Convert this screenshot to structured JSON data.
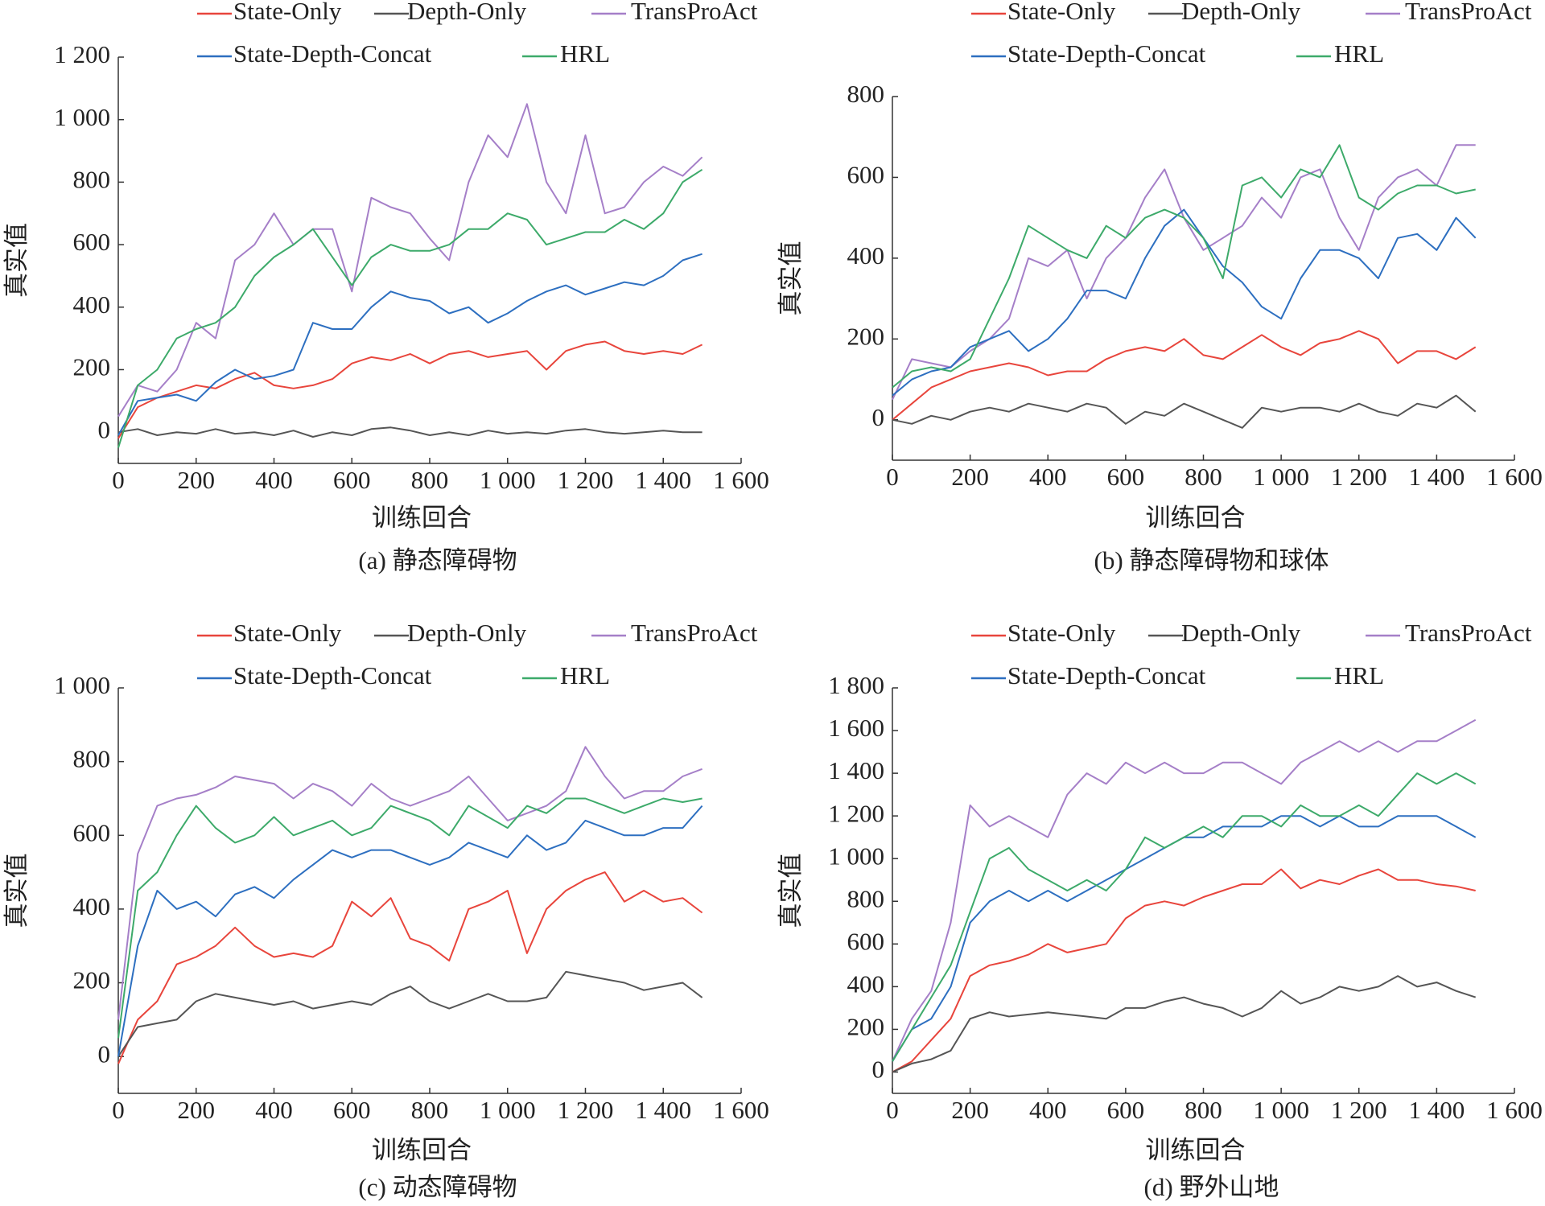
{
  "chart_data": [
    {
      "type": "line",
      "caption": "(a) 静态障碍物",
      "x_label": "训练回合",
      "y_label": "真实值",
      "x": [
        0,
        50,
        100,
        150,
        200,
        250,
        300,
        350,
        400,
        450,
        500,
        550,
        600,
        650,
        700,
        750,
        800,
        850,
        900,
        950,
        1000,
        1050,
        1100,
        1150,
        1200,
        1250,
        1300,
        1350,
        1400,
        1450,
        1500
      ],
      "xlim": [
        0,
        1600
      ],
      "xticks": [
        0,
        200,
        400,
        600,
        800,
        {
          "value": 1000,
          "label": "1 000"
        },
        {
          "value": 1200,
          "label": "1 200"
        },
        {
          "value": 1400,
          "label": "1 400"
        },
        {
          "value": 1600,
          "label": "1 600"
        }
      ],
      "ylim": [
        -100,
        1200
      ],
      "yticks": [
        0,
        200,
        400,
        600,
        800,
        {
          "value": 1000,
          "label": "1 000"
        },
        {
          "value": 1200,
          "label": "1 200"
        }
      ],
      "series": [
        {
          "name": "State-Only",
          "color": "#e8453c",
          "values": [
            -20,
            80,
            110,
            130,
            150,
            140,
            170,
            190,
            150,
            140,
            150,
            170,
            220,
            240,
            230,
            250,
            220,
            250,
            260,
            240,
            250,
            260,
            200,
            260,
            280,
            290,
            260,
            250,
            260,
            250,
            280
          ]
        },
        {
          "name": "Depth-Only",
          "color": "#555555",
          "values": [
            0,
            10,
            -10,
            0,
            -5,
            10,
            -5,
            0,
            -10,
            5,
            -15,
            0,
            -10,
            10,
            15,
            5,
            -10,
            0,
            -10,
            5,
            -5,
            0,
            -5,
            5,
            10,
            0,
            -5,
            0,
            5,
            0,
            0
          ]
        },
        {
          "name": "TransProAct",
          "color": "#a57fc8",
          "values": [
            50,
            150,
            130,
            200,
            350,
            300,
            550,
            600,
            700,
            600,
            650,
            650,
            450,
            750,
            720,
            700,
            620,
            550,
            800,
            950,
            880,
            1050,
            800,
            700,
            950,
            700,
            720,
            800,
            850,
            820,
            880
          ]
        },
        {
          "name": "State-Depth-Concat",
          "color": "#2d6fc0",
          "values": [
            -10,
            100,
            110,
            120,
            100,
            160,
            200,
            170,
            180,
            200,
            350,
            330,
            330,
            400,
            450,
            430,
            420,
            380,
            400,
            350,
            380,
            420,
            450,
            470,
            440,
            460,
            480,
            470,
            500,
            550,
            570
          ]
        },
        {
          "name": "HRL",
          "color": "#3daa6a",
          "values": [
            -50,
            150,
            200,
            300,
            330,
            350,
            400,
            500,
            560,
            600,
            650,
            560,
            470,
            560,
            600,
            580,
            580,
            600,
            650,
            650,
            700,
            680,
            600,
            620,
            640,
            640,
            680,
            650,
            700,
            800,
            840
          ]
        }
      ]
    },
    {
      "type": "line",
      "caption": "(b) 静态障碍物和球体",
      "x_label": "训练回合",
      "y_label": "真实值",
      "x": [
        0,
        50,
        100,
        150,
        200,
        250,
        300,
        350,
        400,
        450,
        500,
        550,
        600,
        650,
        700,
        750,
        800,
        850,
        900,
        950,
        1000,
        1050,
        1100,
        1150,
        1200,
        1250,
        1300,
        1350,
        1400,
        1450,
        1500
      ],
      "xlim": [
        0,
        1600
      ],
      "xticks": [
        0,
        200,
        400,
        600,
        800,
        {
          "value": 1000,
          "label": "1 000"
        },
        {
          "value": 1200,
          "label": "1 200"
        },
        {
          "value": 1400,
          "label": "1 400"
        },
        {
          "value": 1600,
          "label": "1 600"
        }
      ],
      "ylim": [
        -100,
        800
      ],
      "yticks": [
        0,
        200,
        400,
        600,
        800
      ],
      "series": [
        {
          "name": "State-Only",
          "color": "#e8453c",
          "values": [
            0,
            40,
            80,
            100,
            120,
            130,
            140,
            130,
            110,
            120,
            120,
            150,
            170,
            180,
            170,
            200,
            160,
            150,
            180,
            210,
            180,
            160,
            190,
            200,
            220,
            200,
            140,
            170,
            170,
            150,
            180
          ]
        },
        {
          "name": "Depth-Only",
          "color": "#555555",
          "values": [
            0,
            -10,
            10,
            0,
            20,
            30,
            20,
            40,
            30,
            20,
            40,
            30,
            -10,
            20,
            10,
            40,
            20,
            0,
            -20,
            30,
            20,
            30,
            30,
            20,
            40,
            20,
            10,
            40,
            30,
            60,
            20
          ]
        },
        {
          "name": "TransProAct",
          "color": "#a57fc8",
          "values": [
            50,
            150,
            140,
            130,
            170,
            200,
            250,
            400,
            380,
            420,
            300,
            400,
            450,
            550,
            620,
            500,
            420,
            450,
            480,
            550,
            500,
            600,
            620,
            500,
            420,
            550,
            600,
            620,
            580,
            680,
            680
          ]
        },
        {
          "name": "State-Depth-Concat",
          "color": "#2d6fc0",
          "values": [
            60,
            100,
            120,
            130,
            180,
            200,
            220,
            170,
            200,
            250,
            320,
            320,
            300,
            400,
            480,
            520,
            450,
            380,
            340,
            280,
            250,
            350,
            420,
            420,
            400,
            350,
            450,
            460,
            420,
            500,
            450
          ]
        },
        {
          "name": "HRL",
          "color": "#3daa6a",
          "values": [
            80,
            120,
            130,
            120,
            150,
            250,
            350,
            480,
            450,
            420,
            400,
            480,
            450,
            500,
            520,
            500,
            450,
            350,
            580,
            600,
            550,
            620,
            600,
            680,
            550,
            520,
            560,
            580,
            580,
            560,
            570
          ]
        }
      ]
    },
    {
      "type": "line",
      "caption": "(c) 动态障碍物",
      "x_label": "训练回合",
      "y_label": "真实值",
      "x": [
        0,
        50,
        100,
        150,
        200,
        250,
        300,
        350,
        400,
        450,
        500,
        550,
        600,
        650,
        700,
        750,
        800,
        850,
        900,
        950,
        1000,
        1050,
        1100,
        1150,
        1200,
        1250,
        1300,
        1350,
        1400,
        1450,
        1500
      ],
      "xlim": [
        0,
        1600
      ],
      "xticks": [
        0,
        200,
        400,
        600,
        800,
        {
          "value": 1000,
          "label": "1 000"
        },
        {
          "value": 1200,
          "label": "1 200"
        },
        {
          "value": 1400,
          "label": "1 400"
        },
        {
          "value": 1600,
          "label": "1 600"
        }
      ],
      "ylim": [
        -100,
        1000
      ],
      "yticks": [
        0,
        200,
        400,
        600,
        800,
        {
          "value": 1000,
          "label": "1 000"
        }
      ],
      "series": [
        {
          "name": "State-Only",
          "color": "#e8453c",
          "values": [
            -20,
            100,
            150,
            250,
            270,
            300,
            350,
            300,
            270,
            280,
            270,
            300,
            420,
            380,
            430,
            320,
            300,
            260,
            400,
            420,
            450,
            280,
            400,
            450,
            480,
            500,
            420,
            450,
            420,
            430,
            390
          ]
        },
        {
          "name": "Depth-Only",
          "color": "#555555",
          "values": [
            0,
            80,
            90,
            100,
            150,
            170,
            160,
            150,
            140,
            150,
            130,
            140,
            150,
            140,
            170,
            190,
            150,
            130,
            150,
            170,
            150,
            150,
            160,
            230,
            220,
            210,
            200,
            180,
            190,
            200,
            160
          ]
        },
        {
          "name": "TransProAct",
          "color": "#a57fc8",
          "values": [
            100,
            550,
            680,
            700,
            710,
            730,
            760,
            750,
            740,
            700,
            740,
            720,
            680,
            740,
            700,
            680,
            700,
            720,
            760,
            700,
            640,
            660,
            680,
            720,
            840,
            760,
            700,
            720,
            720,
            760,
            780
          ]
        },
        {
          "name": "State-Depth-Concat",
          "color": "#2d6fc0",
          "values": [
            0,
            300,
            450,
            400,
            420,
            380,
            440,
            460,
            430,
            480,
            520,
            560,
            540,
            560,
            560,
            540,
            520,
            540,
            580,
            560,
            540,
            600,
            560,
            580,
            640,
            620,
            600,
            600,
            620,
            620,
            680
          ]
        },
        {
          "name": "HRL",
          "color": "#3daa6a",
          "values": [
            50,
            450,
            500,
            600,
            680,
            620,
            580,
            600,
            650,
            600,
            620,
            640,
            600,
            620,
            680,
            660,
            640,
            600,
            680,
            650,
            620,
            680,
            660,
            700,
            700,
            680,
            660,
            680,
            700,
            690,
            700
          ]
        }
      ]
    },
    {
      "type": "line",
      "caption": "(d) 野外山地",
      "x_label": "训练回合",
      "y_label": "真实值",
      "x": [
        0,
        50,
        100,
        150,
        200,
        250,
        300,
        350,
        400,
        450,
        500,
        550,
        600,
        650,
        700,
        750,
        800,
        850,
        900,
        950,
        1000,
        1050,
        1100,
        1150,
        1200,
        1250,
        1300,
        1350,
        1400,
        1450,
        1500
      ],
      "xlim": [
        0,
        1600
      ],
      "xticks": [
        0,
        200,
        400,
        600,
        800,
        {
          "value": 1000,
          "label": "1 000"
        },
        {
          "value": 1200,
          "label": "1 200"
        },
        {
          "value": 1400,
          "label": "1 400"
        },
        {
          "value": 1600,
          "label": "1 600"
        }
      ],
      "ylim": [
        -100,
        1800
      ],
      "yticks": [
        0,
        200,
        400,
        600,
        800,
        {
          "value": 1000,
          "label": "1 000"
        },
        {
          "value": 1200,
          "label": "1 200"
        },
        {
          "value": 1400,
          "label": "1 400"
        },
        {
          "value": 1600,
          "label": "1 600"
        },
        {
          "value": 1800,
          "label": "1 800"
        }
      ],
      "series": [
        {
          "name": "State-Only",
          "color": "#e8453c",
          "values": [
            0,
            50,
            150,
            250,
            450,
            500,
            520,
            550,
            600,
            560,
            580,
            600,
            720,
            780,
            800,
            780,
            820,
            850,
            880,
            880,
            950,
            860,
            900,
            880,
            920,
            950,
            900,
            900,
            880,
            870,
            850
          ]
        },
        {
          "name": "Depth-Only",
          "color": "#555555",
          "values": [
            0,
            40,
            60,
            100,
            250,
            280,
            260,
            270,
            280,
            270,
            260,
            250,
            300,
            300,
            330,
            350,
            320,
            300,
            260,
            300,
            380,
            320,
            350,
            400,
            380,
            400,
            450,
            400,
            420,
            380,
            350
          ]
        },
        {
          "name": "TransProAct",
          "color": "#a57fc8",
          "values": [
            50,
            250,
            380,
            700,
            1250,
            1150,
            1200,
            1150,
            1100,
            1300,
            1400,
            1350,
            1450,
            1400,
            1450,
            1400,
            1400,
            1450,
            1450,
            1400,
            1350,
            1450,
            1500,
            1550,
            1500,
            1550,
            1500,
            1550,
            1550,
            1600,
            1650
          ]
        },
        {
          "name": "State-Depth-Concat",
          "color": "#2d6fc0",
          "values": [
            50,
            200,
            250,
            400,
            700,
            800,
            850,
            800,
            850,
            800,
            850,
            900,
            950,
            1000,
            1050,
            1100,
            1100,
            1150,
            1150,
            1150,
            1200,
            1200,
            1150,
            1200,
            1150,
            1150,
            1200,
            1200,
            1200,
            1150,
            1100
          ]
        },
        {
          "name": "HRL",
          "color": "#3daa6a",
          "values": [
            50,
            200,
            350,
            500,
            750,
            1000,
            1050,
            950,
            900,
            850,
            900,
            850,
            950,
            1100,
            1050,
            1100,
            1150,
            1100,
            1200,
            1200,
            1150,
            1250,
            1200,
            1200,
            1250,
            1200,
            1300,
            1400,
            1350,
            1400,
            1350
          ]
        }
      ]
    }
  ]
}
